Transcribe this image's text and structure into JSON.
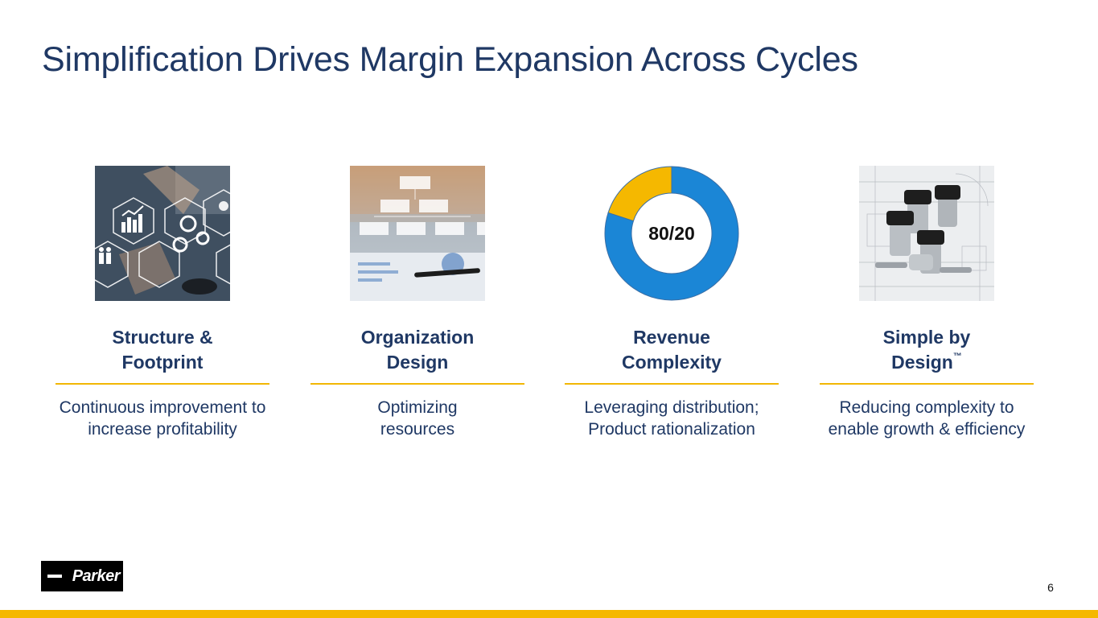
{
  "slide": {
    "title": "Simplification Drives Margin Expansion Across Cycles",
    "page_number": "6"
  },
  "pillars": [
    {
      "heading_line1": "Structure &",
      "heading_line2": "Footprint",
      "desc_line1": "Continuous improvement to",
      "desc_line2": "increase profitability",
      "image": "business-analytics-gears-image"
    },
    {
      "heading_line1": "Organization",
      "heading_line2": "Design",
      "desc_line1": "Optimizing",
      "desc_line2": "resources",
      "image": "org-chart-image"
    },
    {
      "heading_line1": "Revenue",
      "heading_line2": "Complexity",
      "desc_line1": "Leveraging distribution;",
      "desc_line2": "Product rationalization",
      "donut_label": "80/20"
    },
    {
      "heading_line1": "Simple by",
      "heading_line2": "Design",
      "heading_mark": "™",
      "desc_line1": "Reducing complexity to",
      "desc_line2": "enable growth & efficiency",
      "image": "valves-on-blueprint-image"
    }
  ],
  "donut": {
    "major_share": 80,
    "minor_share": 20,
    "major_color": "#1b86d6",
    "minor_color": "#f5b800"
  },
  "logo": {
    "text": "Parker"
  },
  "colors": {
    "title": "#1f3864",
    "accent": "#f5b800",
    "rule": "#f2b705"
  }
}
